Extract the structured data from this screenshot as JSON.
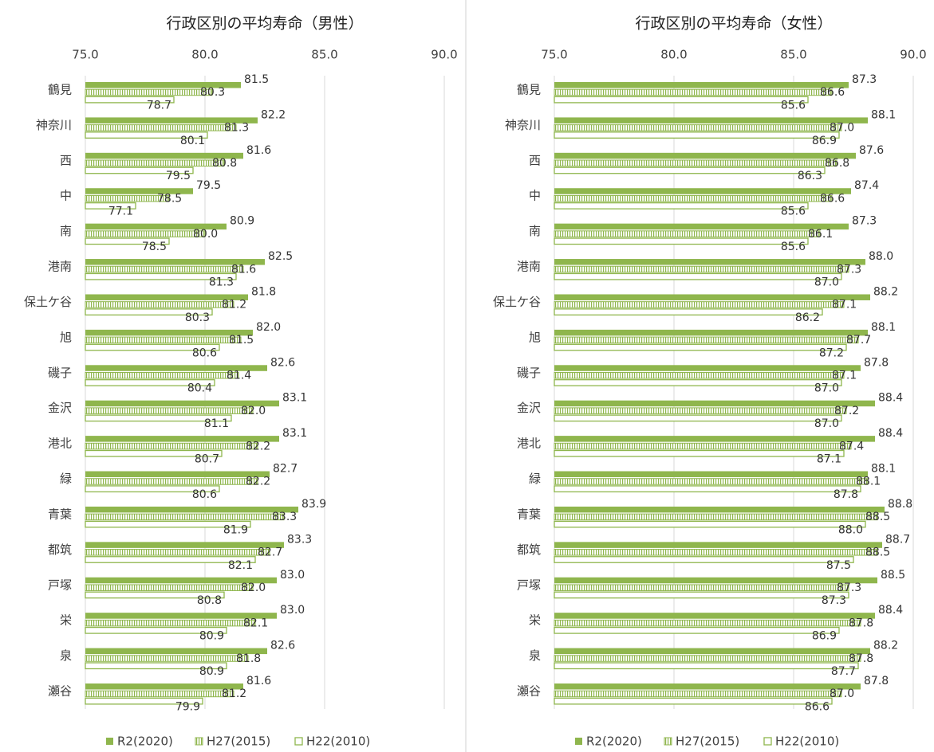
{
  "chart_data": [
    {
      "type": "hbar",
      "title": "行政区別の平均寿命（男性）",
      "categories": [
        "鶴見",
        "神奈川",
        "西",
        "中",
        "南",
        "港南",
        "保土ケ谷",
        "旭",
        "磯子",
        "金沢",
        "港北",
        "緑",
        "青葉",
        "都筑",
        "戸塚",
        "栄",
        "泉",
        "瀬谷"
      ],
      "series": [
        {
          "name": "R2(2020)",
          "color": "#8fb64d",
          "style": "solid",
          "values": [
            81.5,
            82.2,
            81.6,
            79.5,
            80.9,
            82.5,
            81.8,
            82.0,
            82.6,
            83.1,
            83.1,
            82.7,
            83.9,
            83.3,
            83.0,
            83.0,
            82.6,
            81.6
          ],
          "value_labels": [
            "81.5",
            "82.2",
            "81.6",
            "79.5",
            "80.9",
            "82.5",
            "81.8",
            "82.0",
            "82.6",
            "83.1",
            "83.1",
            "82.7",
            "83.9",
            "83.3",
            "83.0",
            "83.0",
            "82.6",
            "81.6"
          ]
        },
        {
          "name": "H27(2015)",
          "color": "#8fb64d",
          "style": "striped",
          "values": [
            80.3,
            81.3,
            80.8,
            78.5,
            80.0,
            81.6,
            81.2,
            81.5,
            81.4,
            82.0,
            82.2,
            82.2,
            83.3,
            82.7,
            82.0,
            82.1,
            81.8,
            81.2
          ],
          "value_labels": [
            "80.3",
            "81.3",
            "80.8",
            "78.5",
            "80.0",
            "81.6",
            "81.2",
            "81.5",
            "81.4",
            "82.0",
            "82.2",
            "82.2",
            "83.3",
            "82.7",
            "82.0",
            "82.1",
            "81.8",
            "81.2"
          ]
        },
        {
          "name": "H22(2010)",
          "color": "#8fb64d",
          "style": "outline",
          "values": [
            78.7,
            80.1,
            79.5,
            77.1,
            78.5,
            81.3,
            80.3,
            80.6,
            80.4,
            81.1,
            80.7,
            80.6,
            81.9,
            82.1,
            80.8,
            80.9,
            80.9,
            79.9
          ],
          "value_labels": [
            "78.7",
            "80.1",
            "79.5",
            "77.1",
            "78.5",
            "81.3",
            "80.3",
            "80.6",
            "80.4",
            "81.1",
            "80.7",
            "80.6",
            "81.9",
            "82.1",
            "80.8",
            "80.9",
            "80.9",
            "79.9"
          ]
        }
      ],
      "xlim": [
        75,
        90
      ],
      "xticks": [
        {
          "value": 75,
          "label": "75.0"
        },
        {
          "value": 80,
          "label": "80.0"
        },
        {
          "value": 85,
          "label": "85.0"
        },
        {
          "value": 90,
          "label": "90.0"
        }
      ],
      "grid": true,
      "legend": "bottom"
    },
    {
      "type": "hbar",
      "title": "行政区別の平均寿命（女性）",
      "categories": [
        "鶴見",
        "神奈川",
        "西",
        "中",
        "南",
        "港南",
        "保土ケ谷",
        "旭",
        "磯子",
        "金沢",
        "港北",
        "緑",
        "青葉",
        "都筑",
        "戸塚",
        "栄",
        "泉",
        "瀬谷"
      ],
      "series": [
        {
          "name": "R2(2020)",
          "color": "#8fb64d",
          "style": "solid",
          "values": [
            87.3,
            88.1,
            87.6,
            87.4,
            87.3,
            88.0,
            88.2,
            88.1,
            87.8,
            88.4,
            88.4,
            88.1,
            88.8,
            88.7,
            88.5,
            88.4,
            88.2,
            87.8
          ],
          "value_labels": [
            "87.3",
            "88.1",
            "87.6",
            "87.4",
            "87.3",
            "88.0",
            "88.2",
            "88.1",
            "87.8",
            "88.4",
            "88.4",
            "88.1",
            "88.8",
            "88.7",
            "88.5",
            "88.4",
            "88.2",
            "87.8"
          ]
        },
        {
          "name": "H27(2015)",
          "color": "#8fb64d",
          "style": "striped",
          "values": [
            86.6,
            87.0,
            86.8,
            86.6,
            86.1,
            87.3,
            87.1,
            87.7,
            87.1,
            87.2,
            87.4,
            88.1,
            88.5,
            88.5,
            87.3,
            87.8,
            87.8,
            87.0
          ],
          "value_labels": [
            "86.6",
            "87.0",
            "86.8",
            "86.6",
            "86.1",
            "87.3",
            "87.1",
            "87.7",
            "87.1",
            "87.2",
            "87.4",
            "88.1",
            "88.5",
            "88.5",
            "87.3",
            "87.8",
            "87.8",
            "87.0"
          ]
        },
        {
          "name": "H22(2010)",
          "color": "#8fb64d",
          "style": "outline",
          "values": [
            85.6,
            86.9,
            86.3,
            85.6,
            85.6,
            87.0,
            86.2,
            87.2,
            87.0,
            87.0,
            87.1,
            87.8,
            88.0,
            87.5,
            87.3,
            86.9,
            87.7,
            86.6
          ],
          "value_labels": [
            "85.6",
            "86.9",
            "86.3",
            "85.6",
            "85.6",
            "87.0",
            "86.2",
            "87.2",
            "87.0",
            "87.0",
            "87.1",
            "87.8",
            "88.0",
            "87.5",
            "87.3",
            "86.9",
            "87.7",
            "86.6"
          ]
        }
      ],
      "xlim": [
        75,
        90
      ],
      "xticks": [
        {
          "value": 75,
          "label": "75.0"
        },
        {
          "value": 80,
          "label": "80.0"
        },
        {
          "value": 85,
          "label": "85.0"
        },
        {
          "value": 90,
          "label": "90.0"
        }
      ],
      "grid": true,
      "legend": "bottom"
    }
  ]
}
